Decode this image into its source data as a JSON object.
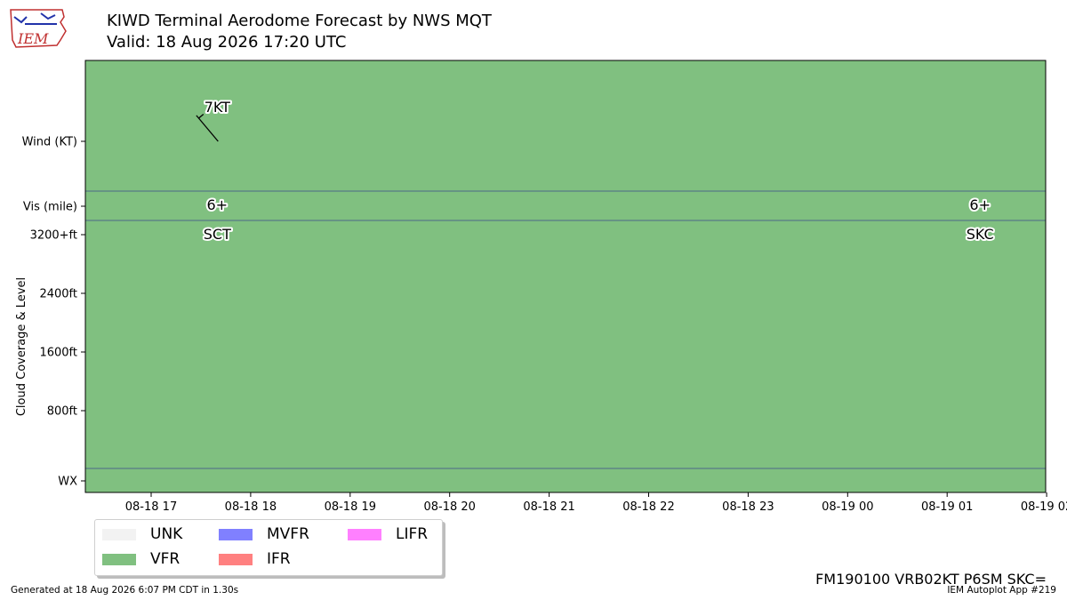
{
  "header": {
    "logo_text": "IEM",
    "title_line1": "KIWD Terminal Aerodome Forecast by NWS MQT",
    "title_line2": "Valid: 18 Aug 2026 17:20 UTC"
  },
  "colors": {
    "UNK": "#f2f2f2",
    "VFR": "#80c080",
    "MVFR": "#8080ff",
    "IFR": "#ff8080",
    "LIFR": "#ff80ff",
    "row_divider": "#3a4a8a"
  },
  "chart_data": {
    "type": "timeline",
    "x_ticks": [
      "08-18 17",
      "08-18 18",
      "08-18 19",
      "08-18 20",
      "08-18 21",
      "08-18 22",
      "08-18 23",
      "08-19 00",
      "08-19 01",
      "08-19 02"
    ],
    "xlim": [
      "08-18 16:17",
      "08-19 02:00"
    ],
    "ylabel": "Cloud Coverage & Level",
    "y_rows": [
      "Wind (KT)",
      "Vis (mile)",
      "3200+ft",
      "2400ft",
      "1600ft",
      "800ft",
      "WX"
    ],
    "flight_category": [
      {
        "from": "08-18 16:17",
        "to": "08-19 02:00",
        "category": "VFR"
      }
    ],
    "forecasts": [
      {
        "time": "08-18 17:20",
        "wind_label": "7KT",
        "wind_direction_deg": 320,
        "wind_speed_kt": 7,
        "vis_label": "6+",
        "cloud_label": "SCT"
      },
      {
        "time": "08-19 01:00",
        "vis_label": "6+",
        "cloud_label": "SKC"
      }
    ]
  },
  "legend": [
    {
      "label": "UNK",
      "key": "UNK"
    },
    {
      "label": "MVFR",
      "key": "MVFR"
    },
    {
      "label": "LIFR",
      "key": "LIFR"
    },
    {
      "label": "VFR",
      "key": "VFR"
    },
    {
      "label": "IFR",
      "key": "IFR"
    }
  ],
  "taf_text": "FM190100 VRB02KT P6SM SKC=",
  "footer": {
    "left": "Generated at 18 Aug 2026 6:07 PM CDT in 1.30s",
    "right": "IEM Autoplot App #219"
  }
}
